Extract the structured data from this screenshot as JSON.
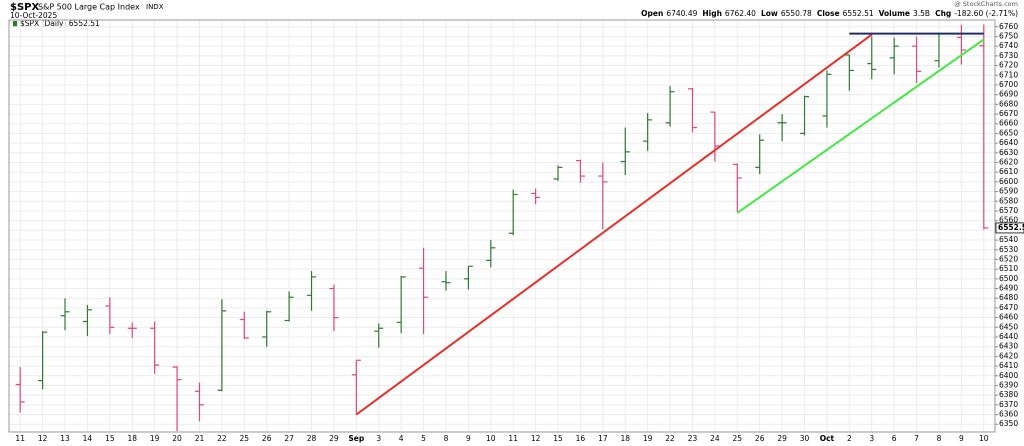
{
  "chart_data": {
    "type": "ohlc",
    "title": "$SPX",
    "subtitle": "S&P 500 Large Cap Index",
    "exchange": "INDX",
    "date": "10-Oct-2025",
    "watermark": "@ StockCharts.com",
    "quote": [
      {
        "label": "Open",
        "value": "6740.49"
      },
      {
        "label": "High",
        "value": "6762.40"
      },
      {
        "label": "Low",
        "value": "6550.78"
      },
      {
        "label": "Close",
        "value": "6552.51"
      },
      {
        "label": "Volume",
        "value": "3.5B"
      },
      {
        "label": "Chg",
        "value": "-182.60 (-2.71%)"
      }
    ],
    "categories": [
      "11",
      "12",
      "13",
      "14",
      "15",
      "18",
      "19",
      "20",
      "21",
      "22",
      "25",
      "26",
      "27",
      "28",
      "29",
      "Sep",
      "3",
      "4",
      "5",
      "8",
      "9",
      "10",
      "11",
      "12",
      "15",
      "16",
      "17",
      "18",
      "19",
      "22",
      "23",
      "24",
      "25",
      "26",
      "29",
      "30",
      "Oct",
      "2",
      "3",
      "6",
      "7",
      "8",
      "9",
      "10"
    ],
    "up_color": "#2f7a2f",
    "down_color": "#e0457b",
    "series": [
      {
        "name": "$SPX (Daily) 6552.51",
        "open": [
          6391,
          6395,
          6462,
          6456,
          6472,
          6449,
          6449,
          6409,
          6384,
          6385,
          6458,
          6440,
          6457,
          6483,
          6490,
          6401,
          6446,
          6455,
          6511,
          6497,
          6500,
          6519,
          6547,
          6588,
          6603,
          6622,
          6606,
          6621,
          6642,
          6661,
          6696,
          6672,
          6618,
          6615,
          6661,
          6650,
          6668,
          6731,
          6722,
          6728,
          6740,
          6725,
          6749,
          6740.49
        ],
        "high": [
          6409,
          6446,
          6480,
          6473,
          6481,
          6455,
          6456,
          6410,
          6393,
          6479,
          6466,
          6467,
          6487,
          6508,
          6494,
          6416,
          6454,
          6503,
          6532,
          6508,
          6513,
          6540,
          6592,
          6593,
          6617,
          6623,
          6620,
          6656,
          6671,
          6699,
          6697,
          6672,
          6619,
          6649,
          6670,
          6689,
          6715,
          6731,
          6750,
          6749,
          6750,
          6754,
          6762,
          6762.4
        ],
        "low": [
          6362,
          6386,
          6447,
          6441,
          6443,
          6439,
          6402,
          6343,
          6353,
          6384,
          6438,
          6430,
          6456,
          6467,
          6446,
          6360,
          6429,
          6444,
          6443,
          6488,
          6489,
          6512,
          6545,
          6577,
          6601,
          6599,
          6551,
          6607,
          6632,
          6657,
          6651,
          6621,
          6569,
          6608,
          6642,
          6648,
          6656,
          6694,
          6706,
          6711,
          6702,
          6718,
          6721,
          6550.78
        ],
        "close": [
          6373,
          6445,
          6466,
          6468,
          6450,
          6449,
          6411,
          6396,
          6370,
          6467,
          6439,
          6466,
          6481,
          6502,
          6460,
          6416,
          6449,
          6502,
          6481,
          6496,
          6513,
          6532,
          6587,
          6584,
          6615,
          6606,
          6600,
          6631,
          6664,
          6693,
          6656,
          6637,
          6604,
          6643,
          6661,
          6688,
          6711,
          6715,
          6716,
          6740,
          6714,
          6753,
          6736,
          6552.51
        ]
      }
    ],
    "trendlines": [
      {
        "color": "#e8302a",
        "x": [
          15,
          38
        ],
        "y": [
          6360,
          6752
        ]
      },
      {
        "color": "#44e844",
        "x": [
          32,
          43
        ],
        "y": [
          6568,
          6747
        ]
      },
      {
        "color": "#1f2d6b",
        "x": [
          37,
          43
        ],
        "y": [
          6753,
          6753
        ]
      }
    ],
    "ylim": [
      6342,
      6767
    ],
    "yticks": [
      6350,
      6360,
      6370,
      6380,
      6390,
      6400,
      6410,
      6420,
      6430,
      6440,
      6450,
      6460,
      6470,
      6480,
      6490,
      6500,
      6510,
      6520,
      6530,
      6540,
      6550,
      6560,
      6570,
      6580,
      6590,
      6600,
      6610,
      6620,
      6630,
      6640,
      6650,
      6660,
      6670,
      6680,
      6690,
      6700,
      6710,
      6720,
      6730,
      6740,
      6750,
      6760
    ],
    "grid": true
  }
}
